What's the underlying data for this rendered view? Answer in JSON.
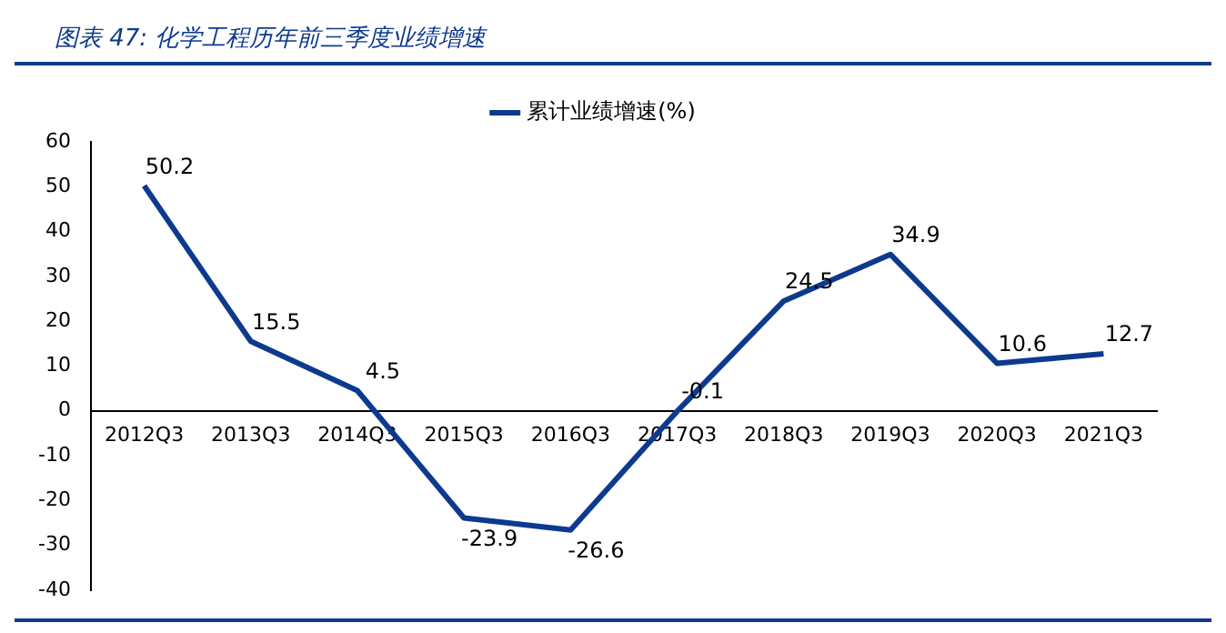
{
  "chart_data": {
    "type": "line",
    "title": "图表 47: 化学工程历年前三季度业绩增速",
    "categories": [
      "2012Q3",
      "2013Q3",
      "2014Q3",
      "2015Q3",
      "2016Q3",
      "2017Q3",
      "2018Q3",
      "2019Q3",
      "2020Q3",
      "2021Q3"
    ],
    "series": [
      {
        "name": "累计业绩增速(%)",
        "color": "#0d3a8e",
        "values": [
          50.2,
          15.5,
          4.5,
          -23.9,
          -26.6,
          -0.1,
          24.5,
          34.9,
          10.6,
          12.7
        ]
      }
    ],
    "ylim": [
      -40,
      60
    ],
    "yticks": [
      -40,
      -30,
      -20,
      -10,
      0,
      10,
      20,
      30,
      40,
      50,
      60
    ],
    "grid": false,
    "legend": "top",
    "marker": "none",
    "line_style": "solid",
    "data_labels": true
  }
}
